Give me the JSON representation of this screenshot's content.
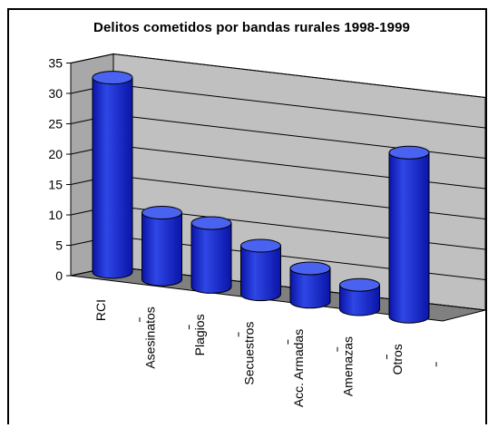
{
  "chart_data": {
    "type": "bar",
    "title": "Delitos cometidos por bandas rurales 1998-1999",
    "categories": [
      "RCI",
      "Asesinatos",
      "Plagios",
      "Secuestros",
      "Acc. Armadas",
      "Amenazas",
      "Otros"
    ],
    "values": [
      32,
      11,
      10.5,
      8,
      5.5,
      4,
      27
    ],
    "ylim": [
      0,
      35
    ],
    "yticks": [
      0,
      5,
      10,
      15,
      20,
      25,
      30,
      35
    ],
    "xlabel": "",
    "ylabel": "",
    "grid": true,
    "legend": "none",
    "bar_shape": "cylinder",
    "colors": {
      "bar": "#2f47e6",
      "bar_dark": "#0a14a8",
      "bar_top": "#4a62f0",
      "wall": "#c0c0c0",
      "floor": "#808080",
      "grid": "#000000"
    }
  }
}
